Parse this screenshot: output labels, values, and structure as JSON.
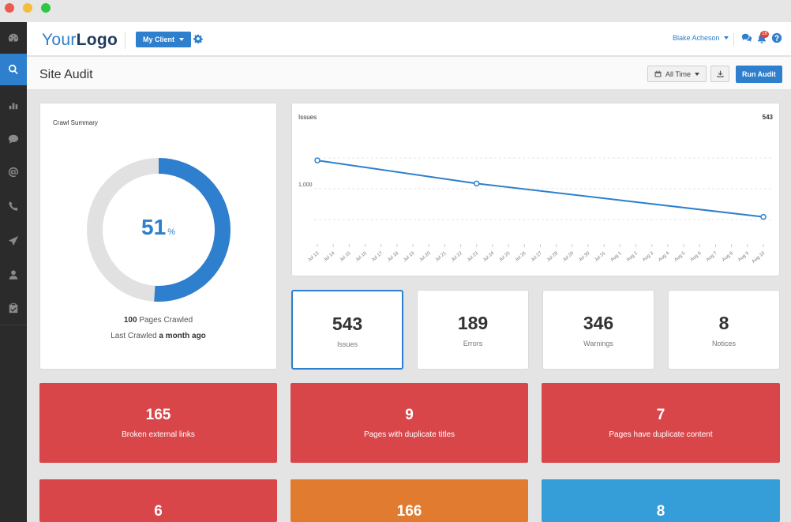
{
  "header": {
    "logo_light": "Your",
    "logo_bold": "Logo",
    "client_button": "My Client",
    "user_name": "Blake Acheson",
    "notification_count": "16"
  },
  "subheader": {
    "title": "Site Audit",
    "time_filter": "All Time",
    "run_button": "Run Audit"
  },
  "sidebar": {
    "items": [
      "dashboard-icon",
      "search-icon",
      "bar-chart-icon",
      "comment-icon",
      "at-icon",
      "phone-icon",
      "send-icon",
      "user-icon",
      "clipboard-icon"
    ],
    "active": "search-icon"
  },
  "crawl_summary": {
    "title": "Crawl Summary",
    "percent": "51",
    "percent_symbol": "%",
    "percent_value": 51,
    "pages_count": "100",
    "pages_label": "Pages Crawled",
    "last_crawled_label": "Last Crawled",
    "last_crawled_value": "a month ago",
    "ring_color": "#2e7fcd",
    "track_color": "#e1e1e1"
  },
  "issues_chart": {
    "title": "Issues",
    "value": "543",
    "y_tick": "1,000"
  },
  "chart_data": {
    "type": "line",
    "title": "Issues",
    "x": [
      "Jul 13",
      "Jul 14",
      "Jul 15",
      "Jul 16",
      "Jul 17",
      "Jul 18",
      "Jul 19",
      "Jul 20",
      "Jul 21",
      "Jul 22",
      "Jul 23",
      "Jul 24",
      "Jul 25",
      "Jul 26",
      "Jul 27",
      "Jul 28",
      "Jul 29",
      "Jul 30",
      "Jul 31",
      "Aug 1",
      "Aug 2",
      "Aug 3",
      "Aug 4",
      "Aug 5",
      "Aug 6",
      "Aug 7",
      "Aug 8",
      "Aug 9",
      "Aug 10"
    ],
    "series": [
      {
        "points": [
          {
            "x": "Jul 13",
            "y": 1460
          },
          {
            "x": "Jul 23",
            "y": 1085
          },
          {
            "x": "Aug 10",
            "y": 543
          }
        ]
      }
    ],
    "yticks": [
      1000
    ],
    "ylim": [
      0,
      2000
    ],
    "grid": true,
    "line_color": "#2e7fcd"
  },
  "stats": [
    {
      "value": "543",
      "label": "Issues"
    },
    {
      "value": "189",
      "label": "Errors"
    },
    {
      "value": "346",
      "label": "Warnings"
    },
    {
      "value": "8",
      "label": "Notices"
    }
  ],
  "tiles": [
    {
      "value": "165",
      "label": "Broken external links",
      "color": "#d9464a"
    },
    {
      "value": "9",
      "label": "Pages with duplicate titles",
      "color": "#d9464a"
    },
    {
      "value": "7",
      "label": "Pages have duplicate content",
      "color": "#d9464a"
    },
    {
      "value": "6",
      "label": "",
      "color": "#d9464a"
    },
    {
      "value": "166",
      "label": "",
      "color": "#e07b2f"
    },
    {
      "value": "8",
      "label": "",
      "color": "#359ed8"
    }
  ]
}
